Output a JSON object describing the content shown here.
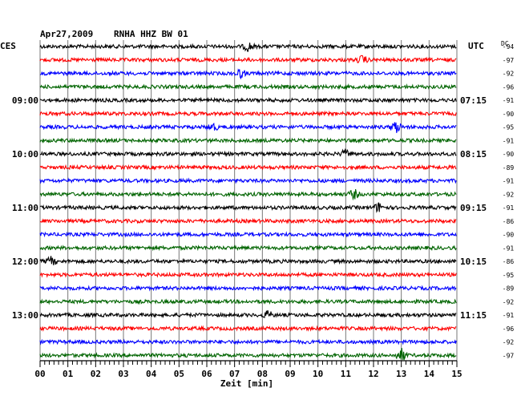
{
  "header": {
    "date": "Apr27,2009",
    "station": "RNHA HHZ BW 01",
    "left_zone": "CES",
    "right_zone": "UTC",
    "dc_label": "DC"
  },
  "chart_data": {
    "type": "line",
    "title": "Apr27,2009  RNHA HHZ BW 01",
    "xlabel": "Zeit [min]",
    "x_ticks": [
      "00",
      "01",
      "02",
      "03",
      "04",
      "05",
      "06",
      "07",
      "08",
      "09",
      "10",
      "11",
      "12",
      "13",
      "14",
      "15"
    ],
    "xlim": [
      0,
      15
    ],
    "grid": true,
    "left_time_labels": [
      "09:00",
      "10:00",
      "11:00",
      "12:00",
      "13:00"
    ],
    "right_time_labels": [
      "07:15",
      "08:15",
      "09:15",
      "10:15",
      "11:15"
    ],
    "label_every_n_traces": 4,
    "label_first_trace_index": 4,
    "trace_colors": [
      "#000000",
      "#ff0000",
      "#0000ff",
      "#006400"
    ],
    "dc_offsets": [
      -94,
      -97,
      -92,
      -96,
      -91,
      -90,
      -95,
      -91,
      -90,
      -89,
      -91,
      -92,
      -91,
      -86,
      -90,
      -91,
      -86,
      -95,
      -89,
      -92,
      -91,
      -96,
      -92,
      -97
    ],
    "events": [
      {
        "trace": 0,
        "minute": 7.5,
        "amp": 1.5
      },
      {
        "trace": 1,
        "minute": 11.6,
        "amp": 1.3
      },
      {
        "trace": 2,
        "minute": 7.2,
        "amp": 1.4
      },
      {
        "trace": 6,
        "minute": 12.8,
        "amp": 2.0
      },
      {
        "trace": 6,
        "minute": 6.2,
        "amp": 1.3
      },
      {
        "trace": 8,
        "minute": 11.0,
        "amp": 1.3
      },
      {
        "trace": 11,
        "minute": 11.3,
        "amp": 1.5
      },
      {
        "trace": 12,
        "minute": 12.2,
        "amp": 1.6
      },
      {
        "trace": 16,
        "minute": 0.4,
        "amp": 1.4
      },
      {
        "trace": 20,
        "minute": 8.2,
        "amp": 1.2
      },
      {
        "trace": 23,
        "minute": 13.0,
        "amp": 2.2
      }
    ]
  }
}
